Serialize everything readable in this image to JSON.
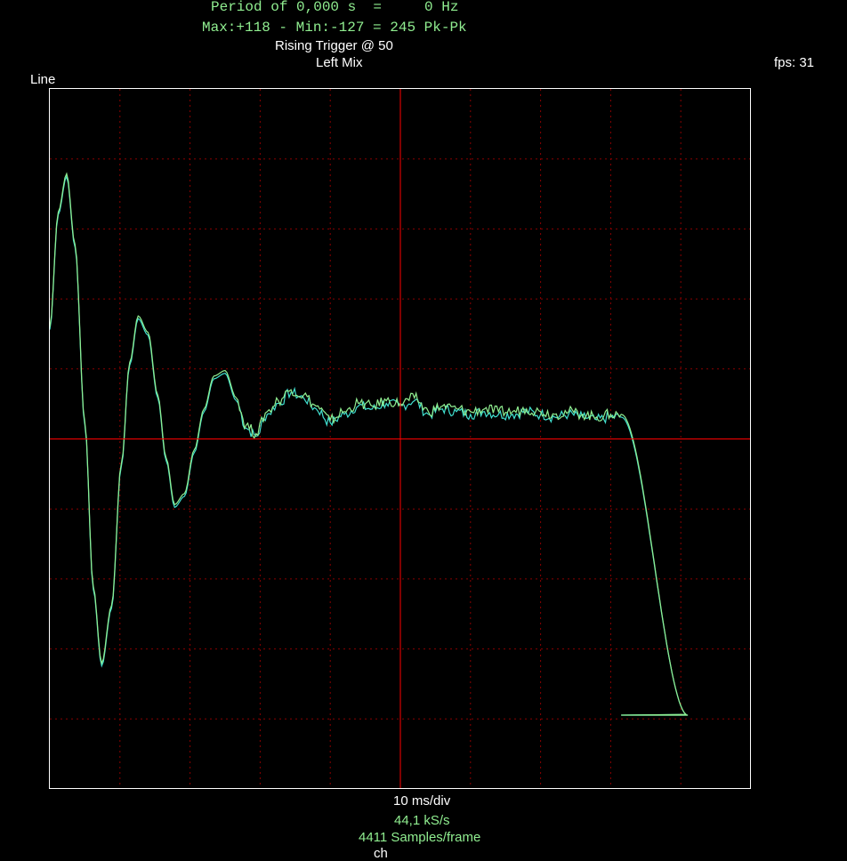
{
  "header": {
    "period_text": "Period of 0,000 s  =     0 Hz",
    "maxmin_text": "Max:+118 - Min:-127 = 245 Pk-Pk",
    "trigger_text": "Rising Trigger @ 50",
    "channel_text": "Left Mix",
    "fps_text": "fps: 31",
    "mode_text": "Line"
  },
  "footer": {
    "timebase_text": "10 ms/div",
    "rate_text": "44,1 kS/s",
    "samples_text": "4411 Samples/frame",
    "cut_text": "ch"
  },
  "colors": {
    "background": "#000000",
    "frame": "#ffffff",
    "grid": "#8b0000",
    "crosshair": "#ff0000",
    "trace_a": "#90ee90",
    "trace_b": "#40e0d0",
    "info_text": "#90ee90",
    "label_text": "#ffffff"
  },
  "chart_data": {
    "type": "line",
    "title": "",
    "xlabel": "10 ms/div",
    "ylabel": "",
    "xlim": [
      0,
      100
    ],
    "ylim": [
      -128,
      128
    ],
    "grid": true,
    "x_divisions": 10,
    "y_divisions": 10,
    "series": [
      {
        "color": "#40e0d0",
        "x": [
          0,
          1.2,
          2.4,
          3.6,
          5.0,
          6.2,
          7.4,
          8.8,
          10.2,
          11.4,
          12.6,
          14.0,
          15.4,
          16.6,
          17.8,
          19.2,
          20.6,
          22.0,
          23.4,
          25.0,
          26.6,
          28.0,
          29.4,
          31.0,
          32.6,
          34.4,
          36.2,
          38.0,
          40.0,
          42.0,
          44.0,
          46.0,
          48.0,
          50.0,
          52.0,
          54.0,
          56.0,
          58.0,
          60.0,
          62.0,
          64.0,
          66.0,
          68.0,
          70.0,
          72.0,
          74.0,
          76.0,
          78.0,
          80.0,
          81.5,
          91.0
        ],
        "y": [
          40,
          82,
          96,
          70,
          5,
          -55,
          -83,
          -62,
          -10,
          27,
          44,
          38,
          15,
          -8,
          -25,
          -21,
          -5,
          10,
          22,
          24,
          14,
          4,
          1,
          9,
          13,
          17,
          15,
          11,
          6,
          9,
          12,
          11,
          13,
          12,
          14,
          9,
          11,
          10,
          9,
          10,
          9,
          9,
          10,
          9,
          8,
          9,
          8,
          7,
          8,
          8,
          -101
        ]
      },
      {
        "color": "#90ee90",
        "x": [
          0,
          1.2,
          2.4,
          3.6,
          5.0,
          6.2,
          7.4,
          8.8,
          10.2,
          11.4,
          12.6,
          14.0,
          15.4,
          16.6,
          17.8,
          19.2,
          20.6,
          22.0,
          23.4,
          25.0,
          26.6,
          28.0,
          29.4,
          31.0,
          32.6,
          34.4,
          36.2,
          38.0,
          40.0,
          42.0,
          44.0,
          46.0,
          48.0,
          50.0,
          52.0,
          54.0,
          56.0,
          58.0,
          60.0,
          62.0,
          64.0,
          66.0,
          68.0,
          70.0,
          72.0,
          74.0,
          76.0,
          78.0,
          80.0,
          81.5,
          91.0
        ],
        "y": [
          41,
          83,
          97,
          71,
          6,
          -54,
          -82,
          -61,
          -9,
          28,
          45,
          39,
          16,
          -7,
          -24,
          -20,
          -4,
          11,
          23,
          25,
          15,
          5,
          2,
          10,
          14,
          18,
          16,
          12,
          7,
          10,
          13,
          12,
          14,
          13,
          15,
          10,
          12,
          11,
          10,
          11,
          10,
          10,
          11,
          10,
          9,
          10,
          9,
          8,
          9,
          9,
          -101
        ]
      }
    ]
  }
}
